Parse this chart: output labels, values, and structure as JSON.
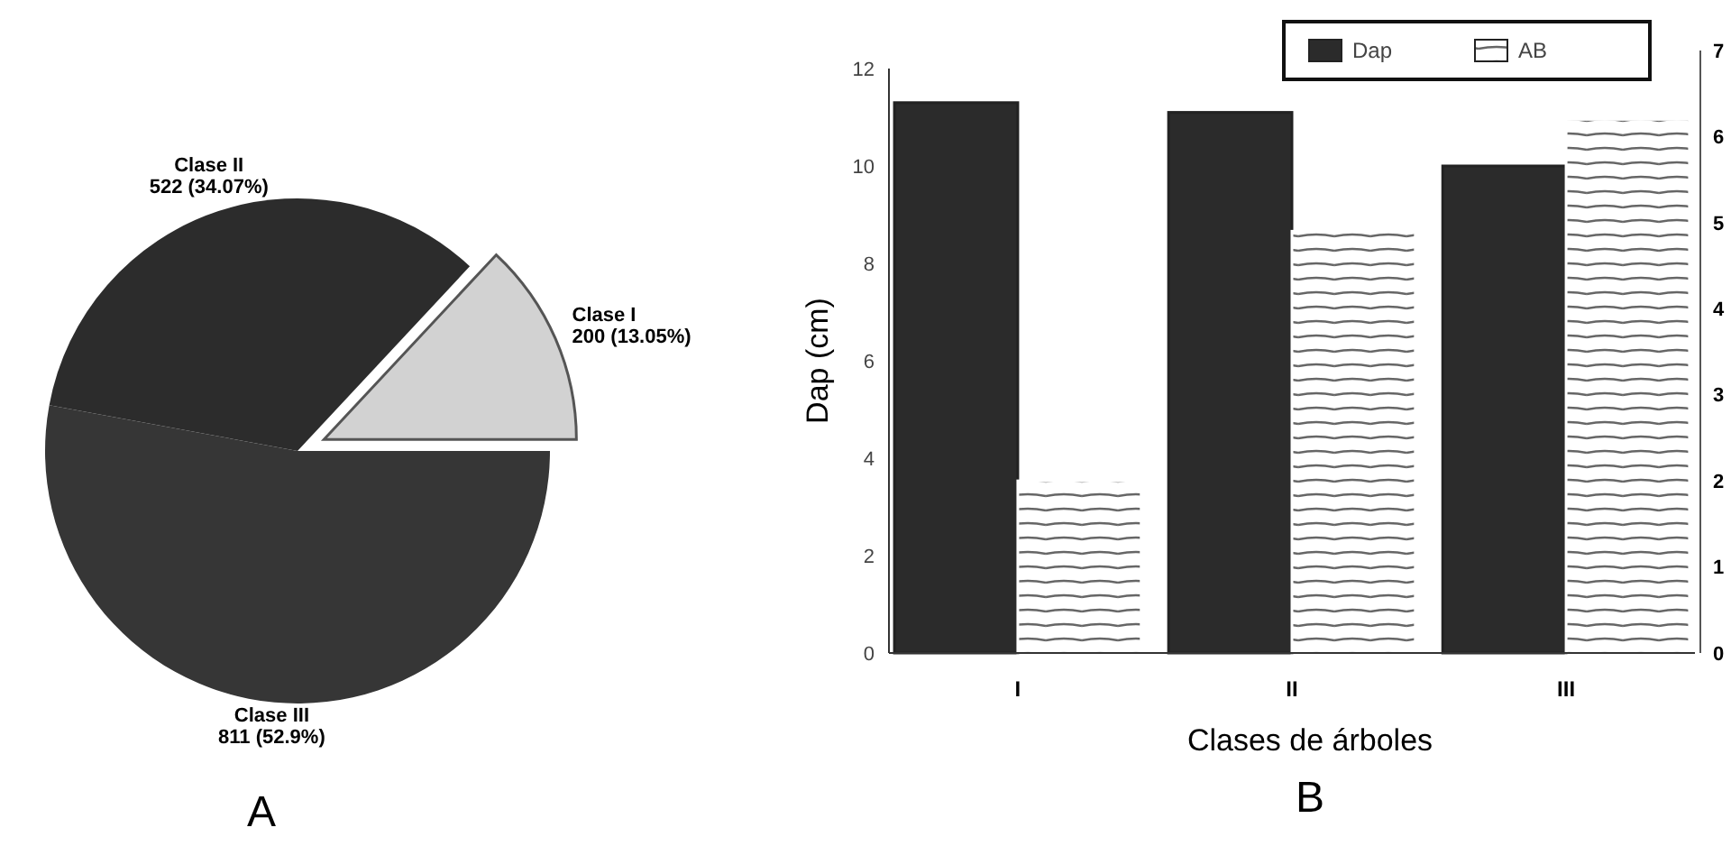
{
  "chart_data": [
    {
      "type": "pie",
      "title": "A",
      "categories": [
        "Clase III",
        "Clase II",
        "Clase I"
      ],
      "values": [
        811,
        522,
        200
      ],
      "colors": [
        "#363636",
        "#2c2c2c",
        "#d2d2d2"
      ],
      "value_labels": [
        "811 (52.9%)",
        "522 (34.07%)",
        "200 (13.05%)"
      ]
    },
    {
      "type": "bar",
      "title": "B",
      "xlabel": "Clases de árboles",
      "ylabel": "Dap (cm)",
      "categories": [
        "I",
        "II",
        "III"
      ],
      "series": [
        {
          "name": "Dap",
          "color": "#2b2b2b",
          "values": [
            11.3,
            11.1,
            10.0
          ]
        },
        {
          "name": "AB",
          "color": "#ffffff",
          "axis": "y2",
          "values": [
            2.0,
            4.9,
            6.2
          ]
        }
      ],
      "ylim": [
        0,
        12
      ],
      "yticks": [
        0,
        2,
        4,
        6,
        8,
        10,
        12
      ],
      "y2lim": [
        0,
        7
      ],
      "y2ticks": [
        0,
        1,
        2,
        3,
        4,
        5,
        6,
        7
      ],
      "legend": "top right",
      "grid": false
    }
  ]
}
